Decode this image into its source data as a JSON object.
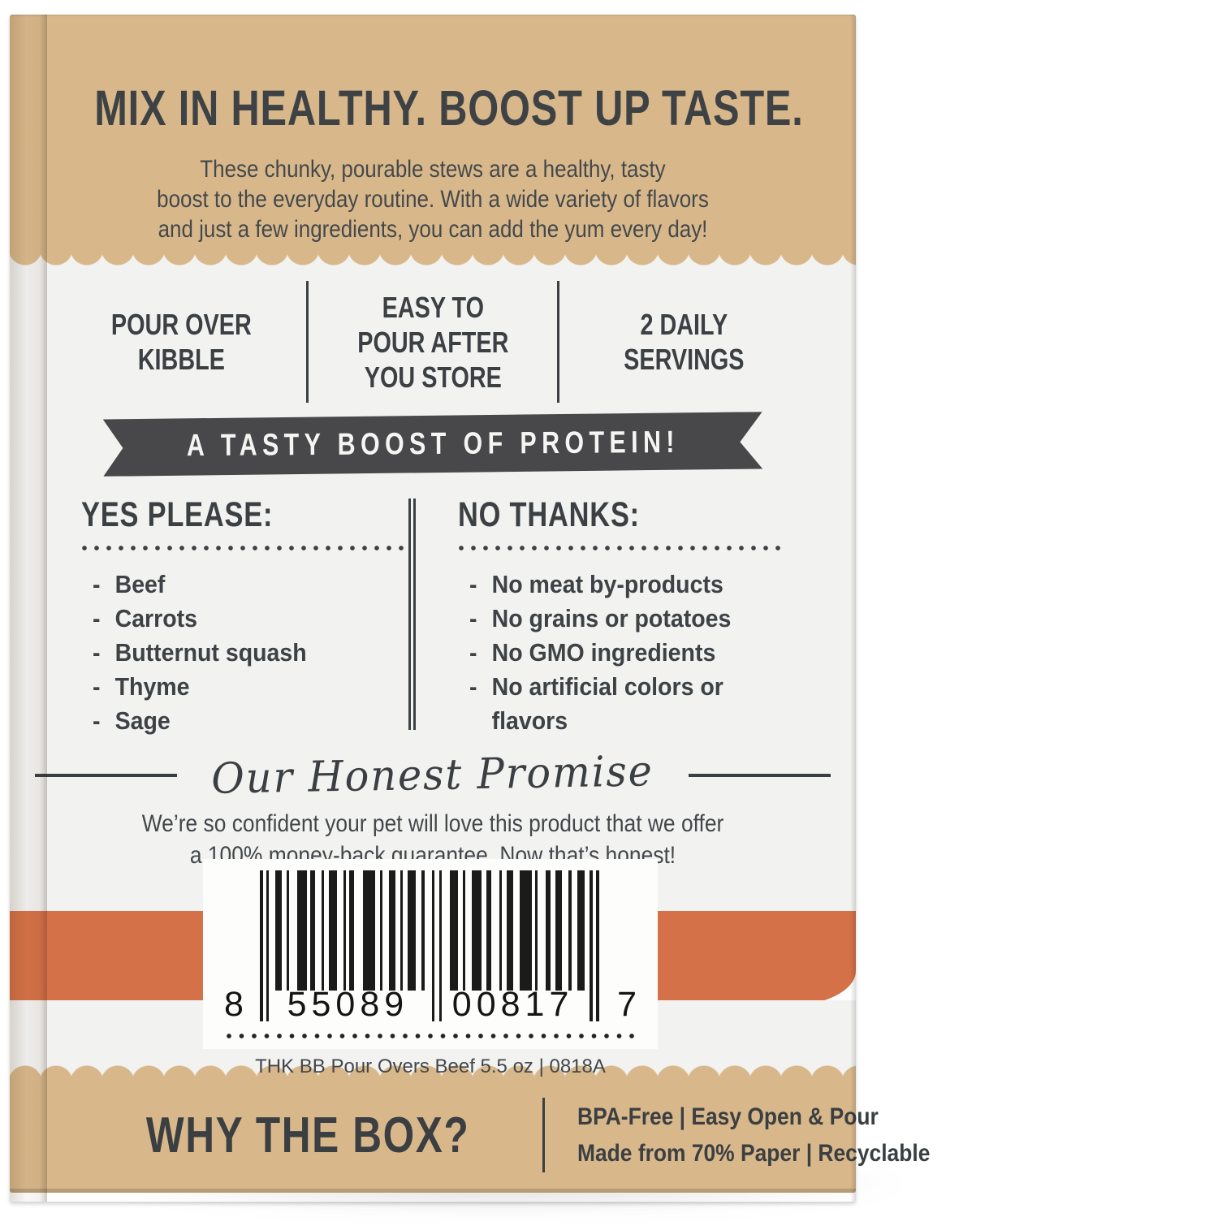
{
  "colors": {
    "kraft": "#d8b88b",
    "panel_white": "#f2f2f1",
    "accent_orange": "#d57148",
    "ink": "#3e4245",
    "ribbon_dark": "#48484a"
  },
  "top": {
    "title": "MIX IN HEALTHY. BOOST UP TASTE.",
    "description": "These chunky, pourable stews are a healthy, tasty\nboost to the everyday routine. With a wide variety of flavors\nand just a few ingredients, you can add the yum every day!"
  },
  "features": [
    {
      "label": "POUR OVER\nKIBBLE"
    },
    {
      "label": "EASY TO\nPOUR AFTER\nYOU STORE"
    },
    {
      "label": "2 DAILY\nSERVINGS"
    }
  ],
  "ribbon": {
    "label": "A TASTY BOOST OF PROTEIN!"
  },
  "yes_please": {
    "heading": "YES PLEASE:",
    "items": [
      "Beef",
      "Carrots",
      "Butternut squash",
      "Thyme",
      "Sage"
    ]
  },
  "no_thanks": {
    "heading": "NO THANKS:",
    "items": [
      "No meat by-products",
      "No grains or potatoes",
      "No GMO ingredients",
      "No artificial colors or flavors"
    ]
  },
  "promise": {
    "heading": "Our Honest Promise",
    "text": "We’re so confident your pet will love this product that we offer\na 100% money-back guarantee. Now that’s honest!"
  },
  "barcode": {
    "digit_left": "8",
    "digits_group1": "55089",
    "digits_group2": "00817",
    "digit_right": "7",
    "caption": "THK BB Pour Overs Beef 5.5 oz | 0818A"
  },
  "footer": {
    "question": "WHY THE BOX?",
    "line1": "BPA-Free | Easy Open & Pour",
    "line2": "Made from 70% Paper | Recyclable"
  }
}
